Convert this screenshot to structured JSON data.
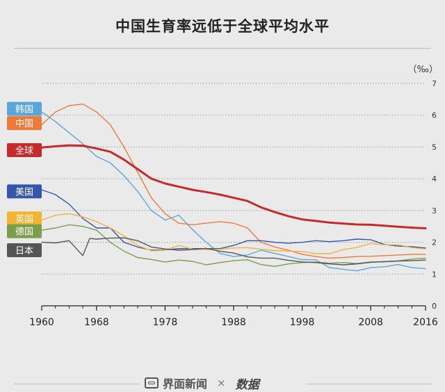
{
  "title": "中国生育率远低于全球平均水平",
  "footer": {
    "brand": "界面新闻",
    "separator": "×",
    "partner": "数据"
  },
  "colors": {
    "韩国": "#5aa6db",
    "中国": "#ee7a3a",
    "全球": "#c62b2b",
    "美国": "#3456ad",
    "英国": "#f3b431",
    "德国": "#7a9e4c",
    "日本": "#555555",
    "grid": "#9a9a9a",
    "axis": "#222222"
  },
  "chart_data": {
    "type": "line",
    "unit_label": "（‰）",
    "xlim": [
      1960,
      2016
    ],
    "ylim": [
      0,
      7
    ],
    "x_ticks": [
      1960,
      1968,
      1978,
      1988,
      1998,
      2008,
      2016
    ],
    "y_ticks": [
      0,
      1,
      2,
      3,
      4,
      5,
      6,
      7
    ],
    "grid": true,
    "legend_position": "left",
    "series": [
      {
        "name": "全球",
        "width": 3,
        "points": [
          [
            1960,
            4.98
          ],
          [
            1962,
            5.02
          ],
          [
            1964,
            5.05
          ],
          [
            1966,
            5.04
          ],
          [
            1968,
            4.95
          ],
          [
            1970,
            4.85
          ],
          [
            1972,
            4.6
          ],
          [
            1974,
            4.3
          ],
          [
            1976,
            4.0
          ],
          [
            1978,
            3.85
          ],
          [
            1980,
            3.75
          ],
          [
            1982,
            3.65
          ],
          [
            1984,
            3.58
          ],
          [
            1986,
            3.5
          ],
          [
            1988,
            3.4
          ],
          [
            1990,
            3.3
          ],
          [
            1992,
            3.1
          ],
          [
            1994,
            2.95
          ],
          [
            1996,
            2.82
          ],
          [
            1998,
            2.72
          ],
          [
            2000,
            2.67
          ],
          [
            2002,
            2.62
          ],
          [
            2004,
            2.59
          ],
          [
            2006,
            2.56
          ],
          [
            2008,
            2.55
          ],
          [
            2010,
            2.52
          ],
          [
            2012,
            2.49
          ],
          [
            2014,
            2.46
          ],
          [
            2016,
            2.44
          ]
        ]
      },
      {
        "name": "韩国",
        "width": 1.4,
        "points": [
          [
            1960,
            6.1
          ],
          [
            1962,
            5.8
          ],
          [
            1964,
            5.45
          ],
          [
            1966,
            5.1
          ],
          [
            1968,
            4.7
          ],
          [
            1970,
            4.5
          ],
          [
            1972,
            4.1
          ],
          [
            1974,
            3.6
          ],
          [
            1976,
            3.0
          ],
          [
            1978,
            2.7
          ],
          [
            1980,
            2.85
          ],
          [
            1982,
            2.4
          ],
          [
            1984,
            2.0
          ],
          [
            1986,
            1.65
          ],
          [
            1988,
            1.55
          ],
          [
            1990,
            1.6
          ],
          [
            1992,
            1.75
          ],
          [
            1994,
            1.65
          ],
          [
            1996,
            1.55
          ],
          [
            1998,
            1.45
          ],
          [
            2000,
            1.45
          ],
          [
            2002,
            1.2
          ],
          [
            2004,
            1.15
          ],
          [
            2006,
            1.1
          ],
          [
            2008,
            1.2
          ],
          [
            2010,
            1.23
          ],
          [
            2012,
            1.3
          ],
          [
            2014,
            1.2
          ],
          [
            2016,
            1.17
          ]
        ]
      },
      {
        "name": "中国",
        "width": 1.4,
        "points": [
          [
            1960,
            5.7
          ],
          [
            1962,
            6.1
          ],
          [
            1964,
            6.3
          ],
          [
            1966,
            6.35
          ],
          [
            1968,
            6.1
          ],
          [
            1970,
            5.7
          ],
          [
            1972,
            5.0
          ],
          [
            1974,
            4.2
          ],
          [
            1976,
            3.4
          ],
          [
            1978,
            2.9
          ],
          [
            1980,
            2.6
          ],
          [
            1982,
            2.55
          ],
          [
            1984,
            2.6
          ],
          [
            1986,
            2.65
          ],
          [
            1988,
            2.6
          ],
          [
            1990,
            2.45
          ],
          [
            1992,
            2.0
          ],
          [
            1994,
            1.85
          ],
          [
            1996,
            1.75
          ],
          [
            1998,
            1.62
          ],
          [
            2000,
            1.55
          ],
          [
            2002,
            1.5
          ],
          [
            2004,
            1.52
          ],
          [
            2006,
            1.55
          ],
          [
            2008,
            1.56
          ],
          [
            2010,
            1.58
          ],
          [
            2012,
            1.6
          ],
          [
            2014,
            1.62
          ],
          [
            2016,
            1.62
          ]
        ]
      },
      {
        "name": "美国",
        "width": 1.4,
        "points": [
          [
            1960,
            3.65
          ],
          [
            1962,
            3.5
          ],
          [
            1964,
            3.2
          ],
          [
            1966,
            2.75
          ],
          [
            1968,
            2.45
          ],
          [
            1970,
            2.45
          ],
          [
            1972,
            2.0
          ],
          [
            1974,
            1.85
          ],
          [
            1976,
            1.75
          ],
          [
            1978,
            1.76
          ],
          [
            1980,
            1.8
          ],
          [
            1982,
            1.8
          ],
          [
            1984,
            1.8
          ],
          [
            1986,
            1.8
          ],
          [
            1988,
            1.9
          ],
          [
            1990,
            2.05
          ],
          [
            1992,
            2.05
          ],
          [
            1994,
            2.0
          ],
          [
            1996,
            1.97
          ],
          [
            1998,
            2.0
          ],
          [
            2000,
            2.05
          ],
          [
            2002,
            2.02
          ],
          [
            2004,
            2.05
          ],
          [
            2006,
            2.1
          ],
          [
            2008,
            2.08
          ],
          [
            2010,
            1.93
          ],
          [
            2012,
            1.88
          ],
          [
            2014,
            1.86
          ],
          [
            2016,
            1.82
          ]
        ]
      },
      {
        "name": "英国",
        "width": 1.4,
        "points": [
          [
            1960,
            2.7
          ],
          [
            1962,
            2.85
          ],
          [
            1964,
            2.9
          ],
          [
            1966,
            2.8
          ],
          [
            1968,
            2.65
          ],
          [
            1970,
            2.45
          ],
          [
            1972,
            2.2
          ],
          [
            1974,
            1.9
          ],
          [
            1976,
            1.73
          ],
          [
            1978,
            1.75
          ],
          [
            1980,
            1.9
          ],
          [
            1982,
            1.78
          ],
          [
            1984,
            1.77
          ],
          [
            1986,
            1.78
          ],
          [
            1988,
            1.82
          ],
          [
            1990,
            1.83
          ],
          [
            1992,
            1.78
          ],
          [
            1994,
            1.74
          ],
          [
            1996,
            1.72
          ],
          [
            1998,
            1.71
          ],
          [
            2000,
            1.64
          ],
          [
            2002,
            1.64
          ],
          [
            2004,
            1.77
          ],
          [
            2006,
            1.84
          ],
          [
            2008,
            1.96
          ],
          [
            2010,
            1.92
          ],
          [
            2012,
            1.92
          ],
          [
            2014,
            1.83
          ],
          [
            2016,
            1.79
          ]
        ]
      },
      {
        "name": "德国",
        "width": 1.4,
        "points": [
          [
            1960,
            2.38
          ],
          [
            1962,
            2.45
          ],
          [
            1964,
            2.55
          ],
          [
            1966,
            2.5
          ],
          [
            1968,
            2.38
          ],
          [
            1970,
            2.0
          ],
          [
            1972,
            1.72
          ],
          [
            1974,
            1.52
          ],
          [
            1976,
            1.46
          ],
          [
            1978,
            1.38
          ],
          [
            1980,
            1.44
          ],
          [
            1982,
            1.4
          ],
          [
            1984,
            1.29
          ],
          [
            1986,
            1.36
          ],
          [
            1988,
            1.42
          ],
          [
            1990,
            1.45
          ],
          [
            1992,
            1.3
          ],
          [
            1994,
            1.24
          ],
          [
            1996,
            1.32
          ],
          [
            1998,
            1.36
          ],
          [
            2000,
            1.38
          ],
          [
            2002,
            1.34
          ],
          [
            2004,
            1.36
          ],
          [
            2006,
            1.33
          ],
          [
            2008,
            1.38
          ],
          [
            2010,
            1.39
          ],
          [
            2012,
            1.41
          ],
          [
            2014,
            1.47
          ],
          [
            2016,
            1.5
          ]
        ]
      },
      {
        "name": "日本",
        "width": 1.4,
        "points": [
          [
            1960,
            2.0
          ],
          [
            1962,
            1.98
          ],
          [
            1964,
            2.05
          ],
          [
            1966,
            1.58
          ],
          [
            1967,
            2.12
          ],
          [
            1968,
            2.1
          ],
          [
            1970,
            2.13
          ],
          [
            1972,
            2.14
          ],
          [
            1974,
            2.05
          ],
          [
            1976,
            1.85
          ],
          [
            1978,
            1.79
          ],
          [
            1980,
            1.75
          ],
          [
            1982,
            1.77
          ],
          [
            1984,
            1.81
          ],
          [
            1986,
            1.72
          ],
          [
            1988,
            1.66
          ],
          [
            1990,
            1.54
          ],
          [
            1992,
            1.5
          ],
          [
            1994,
            1.5
          ],
          [
            1996,
            1.43
          ],
          [
            1998,
            1.38
          ],
          [
            2000,
            1.36
          ],
          [
            2002,
            1.32
          ],
          [
            2004,
            1.29
          ],
          [
            2006,
            1.32
          ],
          [
            2008,
            1.37
          ],
          [
            2010,
            1.39
          ],
          [
            2012,
            1.41
          ],
          [
            2014,
            1.42
          ],
          [
            2016,
            1.44
          ]
        ]
      }
    ],
    "legend": [
      {
        "name": "韩国",
        "y": 6.2
      },
      {
        "name": "中国",
        "y": 5.75
      },
      {
        "name": "全球",
        "y": 4.9
      },
      {
        "name": "美国",
        "y": 3.6
      },
      {
        "name": "英国",
        "y": 2.75
      },
      {
        "name": "德国",
        "y": 2.35
      },
      {
        "name": "日本",
        "y": 1.75
      }
    ]
  }
}
